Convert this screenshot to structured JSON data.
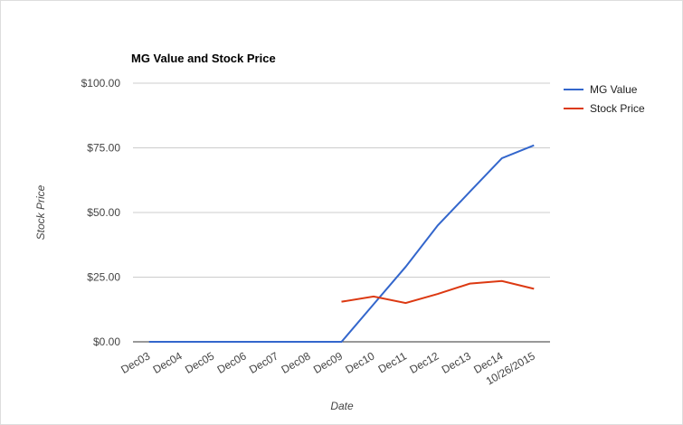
{
  "chart_data": {
    "type": "line",
    "title": "MG Value and Stock Price",
    "x_label": "Date",
    "y_label": "Stock Price",
    "categories": [
      "Dec03",
      "Dec04",
      "Dec05",
      "Dec06",
      "Dec07",
      "Dec08",
      "Dec09",
      "Dec10",
      "Dec11",
      "Dec12",
      "Dec13",
      "Dec14",
      "10/26/2015"
    ],
    "series": [
      {
        "name": "MG Value",
        "color": "#3366cc",
        "values": [
          0,
          0,
          0,
          0,
          0,
          0,
          0,
          14.5,
          29,
          45,
          58,
          71,
          76
        ]
      },
      {
        "name": "Stock Price",
        "color": "#dc3912",
        "values": [
          null,
          null,
          null,
          null,
          null,
          null,
          15.5,
          17.5,
          15,
          18.5,
          22.5,
          23.5,
          20.5
        ]
      }
    ],
    "ylim": [
      0,
      100
    ],
    "yticks": [
      {
        "value": 0,
        "label": "$0.00"
      },
      {
        "value": 25,
        "label": "$25.00"
      },
      {
        "value": 50,
        "label": "$50.00"
      },
      {
        "value": 75,
        "label": "$75.00"
      },
      {
        "value": 100,
        "label": "$100.00"
      }
    ],
    "grid": true,
    "legend": "right"
  }
}
